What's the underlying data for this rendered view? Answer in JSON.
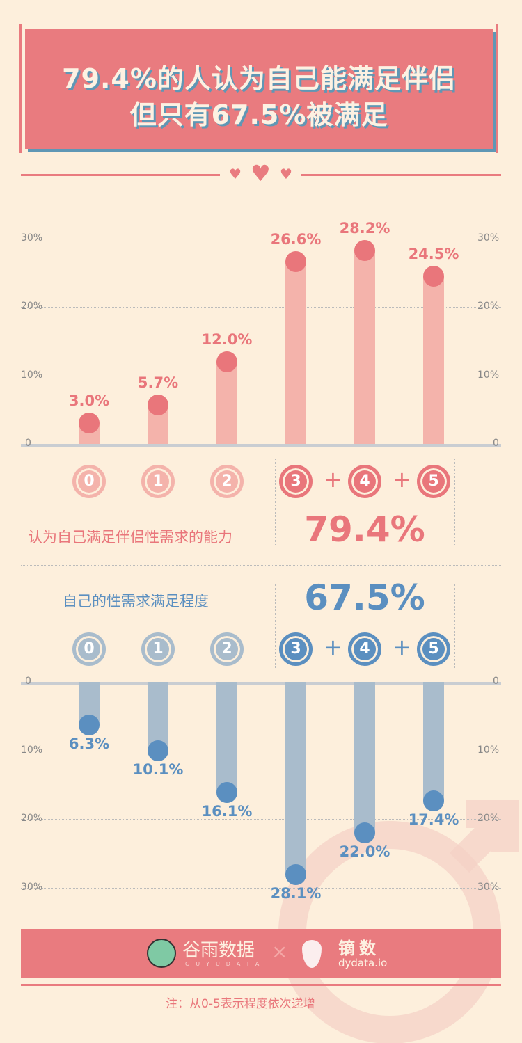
{
  "header": {
    "line1": "79.4%的人认为自己能满足伴侣",
    "line2": "但只有67.5%被满足"
  },
  "colors": {
    "pink": "#e9767b",
    "pink_bar": "#f4b3ab",
    "blue": "#5b8fc0",
    "blue_bar": "#a9bccc",
    "background": "#fdefdc"
  },
  "chart_data": [
    {
      "type": "bar",
      "title": "认为自己满足伴侣性需求的能力",
      "categories": [
        "0",
        "1",
        "2",
        "3",
        "4",
        "5"
      ],
      "values": [
        3.0,
        5.7,
        12.0,
        26.6,
        28.2,
        24.5
      ],
      "value_labels": [
        "3.0%",
        "5.7%",
        "12.0%",
        "26.6%",
        "28.2%",
        "24.5%"
      ],
      "ylim": [
        0,
        30
      ],
      "yticks": [
        "0",
        "10%",
        "20%",
        "30%"
      ],
      "grid": true,
      "summary": "79.4%",
      "summary_categories": "3 + 4 + 5"
    },
    {
      "type": "bar",
      "direction": "down",
      "title": "自己的性需求满足程度",
      "categories": [
        "0",
        "1",
        "2",
        "3",
        "4",
        "5"
      ],
      "values": [
        6.3,
        10.1,
        16.1,
        28.1,
        22.0,
        17.4
      ],
      "value_labels": [
        "6.3%",
        "10.1%",
        "16.1%",
        "28.1%",
        "22.0%",
        "17.4%"
      ],
      "ylim": [
        0,
        30
      ],
      "yticks": [
        "0",
        "10%",
        "20%",
        "30%"
      ],
      "grid": true,
      "summary": "67.5%"
    }
  ],
  "plus": "+",
  "footer": {
    "logo1": "谷雨数据",
    "logo1_sub": "GUYUDATA",
    "times": "×",
    "logo2": "镝数",
    "logo2_sub": "dydata.io",
    "note": "注：从0-5表示程度依次递增"
  }
}
